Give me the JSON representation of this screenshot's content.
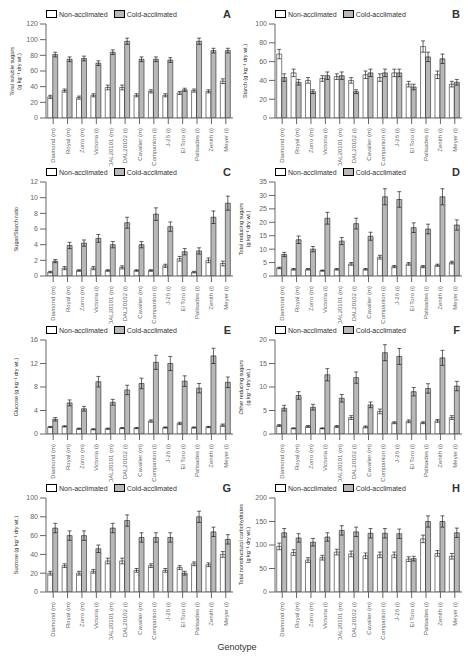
{
  "chart_data": [
    {
      "type": "bar",
      "title": "A",
      "ylabel": "Total soluble sugars\n(g kg⁻¹ dry wt.)",
      "categories": [
        "Diamond (m)",
        "Royal (m)",
        "Zorro (m)",
        "Victoria (i)",
        "DAL20101 (m)",
        "DAL20102 (i)",
        "Cavalier (m)",
        "Companion (i)",
        "J-26 (i)",
        "El Toro (i)",
        "Palisades (i)",
        "Zenith (i)",
        "Meyer (i)"
      ],
      "series": [
        {
          "name": "Non-acclimated",
          "color": "#ffffff",
          "values": [
            27,
            35,
            26,
            29,
            39,
            39,
            29,
            34,
            29,
            32,
            35,
            34,
            47
          ],
          "error": [
            2,
            2,
            2,
            2,
            3,
            3,
            2,
            2,
            2,
            2,
            2,
            2,
            3
          ]
        },
        {
          "name": "Cold-acclimated",
          "color": "#b8b8b8",
          "values": [
            81,
            75,
            76,
            70,
            84,
            98,
            75,
            75,
            74,
            36,
            98,
            86,
            86
          ],
          "error": [
            3,
            3,
            3,
            3,
            3,
            4,
            3,
            3,
            3,
            2,
            4,
            3,
            3
          ]
        }
      ],
      "ylim": [
        0,
        120
      ],
      "yticks": [
        0,
        20,
        40,
        60,
        80,
        100,
        120
      ],
      "legend": "upper left",
      "grid": false
    },
    {
      "type": "bar",
      "title": "B",
      "ylabel": "Starch (g kg⁻¹ dry wt.)",
      "categories": [
        "Diamond (m)",
        "Royal (m)",
        "Zorro (m)",
        "Victoria (i)",
        "DAL20101 (m)",
        "DAL20102 (i)",
        "Cavalier (m)",
        "Companion (i)",
        "J-26 (i)",
        "El Toro (i)",
        "Palisades (i)",
        "Zenith (i)",
        "Meyer (i)"
      ],
      "series": [
        {
          "name": "Non-acclimated",
          "color": "#ffffff",
          "values": [
            68,
            48,
            40,
            42,
            44,
            40,
            46,
            43,
            48,
            36,
            76,
            46,
            36
          ],
          "error": [
            5,
            4,
            3,
            3,
            3,
            3,
            4,
            4,
            4,
            3,
            6,
            4,
            3
          ]
        },
        {
          "name": "Cold-acclimated",
          "color": "#b8b8b8",
          "values": [
            43,
            38,
            28,
            45,
            45,
            28,
            48,
            48,
            48,
            33,
            65,
            63,
            38
          ],
          "error": [
            4,
            3,
            2,
            4,
            4,
            2,
            4,
            4,
            4,
            3,
            5,
            5,
            3
          ]
        }
      ],
      "ylim": [
        0,
        100
      ],
      "yticks": [
        0,
        20,
        40,
        60,
        80,
        100
      ],
      "legend": "upper left",
      "grid": false
    },
    {
      "type": "bar",
      "title": "C",
      "ylabel": "Sugar/Starch ratio",
      "categories": [
        "Diamond (m)",
        "Royal (m)",
        "Zorro (m)",
        "Victoria (i)",
        "DAL20101 (m)",
        "DAL20102 (i)",
        "Cavalier (m)",
        "Companion (i)",
        "J-26 (i)",
        "El Toro (i)",
        "Palisades (i)",
        "Zenith (i)",
        "Meyer (i)"
      ],
      "series": [
        {
          "name": "Non-acclimated",
          "color": "#ffffff",
          "values": [
            0.5,
            1.0,
            0.7,
            1.0,
            0.7,
            1.1,
            0.7,
            0.7,
            1.3,
            2.2,
            0.5,
            2.0,
            1.6
          ],
          "error": [
            0.1,
            0.2,
            0.1,
            0.2,
            0.1,
            0.2,
            0.1,
            0.1,
            0.2,
            0.3,
            0.1,
            0.3,
            0.3
          ]
        },
        {
          "name": "Cold-acclimated",
          "color": "#b8b8b8",
          "values": [
            1.9,
            3.9,
            4.2,
            4.8,
            4.0,
            6.8,
            4.0,
            7.9,
            6.3,
            3.1,
            3.2,
            7.5,
            9.3
          ],
          "error": [
            0.2,
            0.4,
            0.4,
            0.5,
            0.4,
            0.7,
            0.4,
            0.8,
            0.6,
            0.4,
            0.4,
            0.8,
            0.9
          ]
        }
      ],
      "ylim": [
        0,
        12
      ],
      "yticks": [
        0,
        2,
        4,
        6,
        8,
        10,
        12
      ],
      "legend": "upper left",
      "grid": false
    },
    {
      "type": "bar",
      "title": "D",
      "ylabel": "Total reducing sugars\n(g kg⁻¹ dry wt.)",
      "categories": [
        "Diamond (m)",
        "Royal (m)",
        "Zorro (m)",
        "Victoria (i)",
        "DAL20101 (m)",
        "DAL20102 (i)",
        "Cavalier (m)",
        "Companion (i)",
        "J-26 (i)",
        "El Toro (i)",
        "Palisades (i)",
        "Zenith (i)",
        "Meyer (i)"
      ],
      "series": [
        {
          "name": "Non-acclimated",
          "color": "#ffffff",
          "values": [
            3.0,
            2.5,
            2.5,
            2.0,
            2.5,
            4.5,
            2.5,
            7.0,
            3.5,
            4.5,
            3.5,
            4.0,
            5.0
          ],
          "error": [
            0.3,
            0.3,
            0.3,
            0.2,
            0.3,
            0.5,
            0.3,
            0.7,
            0.4,
            0.5,
            0.4,
            0.4,
            0.5
          ]
        },
        {
          "name": "Cold-acclimated",
          "color": "#b8b8b8",
          "values": [
            8.0,
            13.5,
            10.0,
            21.5,
            13.0,
            19.5,
            14.8,
            29.5,
            28.5,
            18.0,
            17.5,
            29.5,
            19.0
          ],
          "error": [
            0.8,
            1.4,
            1.0,
            2.2,
            1.3,
            2.0,
            1.5,
            3.0,
            2.9,
            1.8,
            1.8,
            3.0,
            1.9
          ]
        }
      ],
      "ylim": [
        0,
        35
      ],
      "yticks": [
        0,
        5,
        10,
        15,
        20,
        25,
        30,
        35
      ],
      "legend": "upper left",
      "grid": false
    },
    {
      "type": "bar",
      "title": "E",
      "ylabel": "Glucose (g kg⁻¹ dry wt.)",
      "categories": [
        "Diamond (m)",
        "Royal (m)",
        "Zorro (m)",
        "Victoria (i)",
        "DAL20101 (m)",
        "DAL20102 (i)",
        "Cavalier (m)",
        "Companion (i)",
        "J-26 (i)",
        "El Toro (i)",
        "Palisades (i)",
        "Zenith (i)",
        "Meyer (i)"
      ],
      "series": [
        {
          "name": "Non-acclimated",
          "color": "#ffffff",
          "values": [
            1.2,
            1.3,
            0.9,
            0.8,
            0.9,
            1.0,
            1.0,
            2.2,
            1.1,
            1.8,
            1.1,
            1.2,
            1.5
          ],
          "error": [
            0.1,
            0.1,
            0.1,
            0.1,
            0.1,
            0.1,
            0.1,
            0.2,
            0.1,
            0.2,
            0.1,
            0.1,
            0.2
          ]
        },
        {
          "name": "Cold-acclimated",
          "color": "#b8b8b8",
          "values": [
            2.5,
            5.3,
            4.3,
            8.9,
            5.4,
            7.5,
            8.6,
            12.2,
            12.0,
            9.0,
            7.8,
            13.3,
            8.8
          ],
          "error": [
            0.3,
            0.5,
            0.4,
            0.9,
            0.5,
            0.8,
            0.9,
            1.2,
            1.2,
            0.9,
            0.8,
            1.3,
            0.9
          ]
        }
      ],
      "ylim": [
        0,
        16
      ],
      "yticks": [
        0,
        4,
        8,
        12,
        16
      ],
      "legend": "upper left",
      "grid": false
    },
    {
      "type": "bar",
      "title": "F",
      "ylabel": "Other reducing sugars\n(g kg⁻¹ dry wt.)",
      "categories": [
        "Diamond (m)",
        "Royal (m)",
        "Zorro (m)",
        "Victoria (i)",
        "DAL20101 (m)",
        "DAL20102 (i)",
        "Cavalier (m)",
        "Companion (i)",
        "J-26 (i)",
        "El Toro (i)",
        "Palisades (i)",
        "Zenith (i)",
        "Meyer (i)"
      ],
      "series": [
        {
          "name": "Non-acclimated",
          "color": "#ffffff",
          "values": [
            1.8,
            1.2,
            1.6,
            1.2,
            1.6,
            3.5,
            1.5,
            4.8,
            2.4,
            2.7,
            2.4,
            2.8,
            3.5
          ],
          "error": [
            0.2,
            0.1,
            0.2,
            0.1,
            0.2,
            0.4,
            0.2,
            0.5,
            0.2,
            0.3,
            0.2,
            0.3,
            0.4
          ]
        },
        {
          "name": "Cold-acclimated",
          "color": "#b8b8b8",
          "values": [
            5.5,
            8.2,
            5.7,
            12.6,
            7.6,
            12.0,
            6.2,
            17.3,
            16.5,
            9.0,
            9.7,
            16.2,
            10.2
          ],
          "error": [
            0.6,
            0.8,
            0.6,
            1.3,
            0.8,
            1.2,
            0.6,
            1.7,
            1.7,
            0.9,
            1.0,
            1.6,
            1.0
          ]
        }
      ],
      "ylim": [
        0,
        20
      ],
      "yticks": [
        0,
        5,
        10,
        15,
        20
      ],
      "legend": "upper left",
      "grid": false
    },
    {
      "type": "bar",
      "title": "G",
      "ylabel": "Sucrose (g kg⁻¹ dry wt.)",
      "categories": [
        "Diamond (m)",
        "Royal (m)",
        "Zorro (m)",
        "Victoria (i)",
        "DAL20101 (m)",
        "DAL20102 (i)",
        "Cavalier (m)",
        "Companion (i)",
        "J-26 (i)",
        "El Toro (i)",
        "Palisades (i)",
        "Zenith (i)",
        "Meyer (i)"
      ],
      "series": [
        {
          "name": "Non-acclimated",
          "color": "#ffffff",
          "values": [
            20,
            28,
            20,
            22,
            33,
            33,
            23,
            28,
            23,
            26,
            30,
            29,
            40
          ],
          "error": [
            2,
            2,
            2,
            2,
            3,
            3,
            2,
            2,
            2,
            2,
            2,
            2,
            3
          ]
        },
        {
          "name": "Cold-acclimated",
          "color": "#b8b8b8",
          "values": [
            68,
            60,
            60,
            46,
            68,
            76,
            58,
            58,
            58,
            20,
            80,
            64,
            56
          ],
          "error": [
            5,
            5,
            5,
            4,
            5,
            6,
            5,
            5,
            5,
            2,
            6,
            5,
            5
          ]
        }
      ],
      "ylim": [
        0,
        100
      ],
      "yticks": [
        0,
        20,
        40,
        60,
        80,
        100
      ],
      "legend": "upper left",
      "grid": false
    },
    {
      "type": "bar",
      "title": "H",
      "ylabel": "Total nonstructural carbohydrates\n(g kg⁻¹ dry wt.)",
      "categories": [
        "Diamond (m)",
        "Royal (m)",
        "Zorro (m)",
        "Victoria (i)",
        "DAL20101 (m)",
        "DAL20102 (i)",
        "Cavalier (m)",
        "Companion (i)",
        "J-26 (i)",
        "El Toro (i)",
        "Palisades (i)",
        "Zenith (i)",
        "Meyer (i)"
      ],
      "series": [
        {
          "name": "Non-acclimated",
          "color": "#ffffff",
          "values": [
            97,
            84,
            68,
            73,
            85,
            81,
            77,
            79,
            79,
            70,
            113,
            82,
            76
          ],
          "error": [
            7,
            6,
            5,
            5,
            6,
            6,
            6,
            6,
            6,
            5,
            8,
            6,
            6
          ]
        },
        {
          "name": "Cold-acclimated",
          "color": "#b8b8b8",
          "values": [
            126,
            115,
            106,
            117,
            131,
            128,
            125,
            125,
            124,
            71,
            150,
            150,
            126
          ],
          "error": [
            9,
            9,
            8,
            9,
            10,
            10,
            10,
            10,
            10,
            5,
            12,
            12,
            10
          ]
        }
      ],
      "ylim": [
        0,
        200
      ],
      "yticks": [
        0,
        50,
        100,
        150,
        200
      ],
      "legend": "upper left",
      "grid": false
    }
  ],
  "xlabel": "Genotype"
}
